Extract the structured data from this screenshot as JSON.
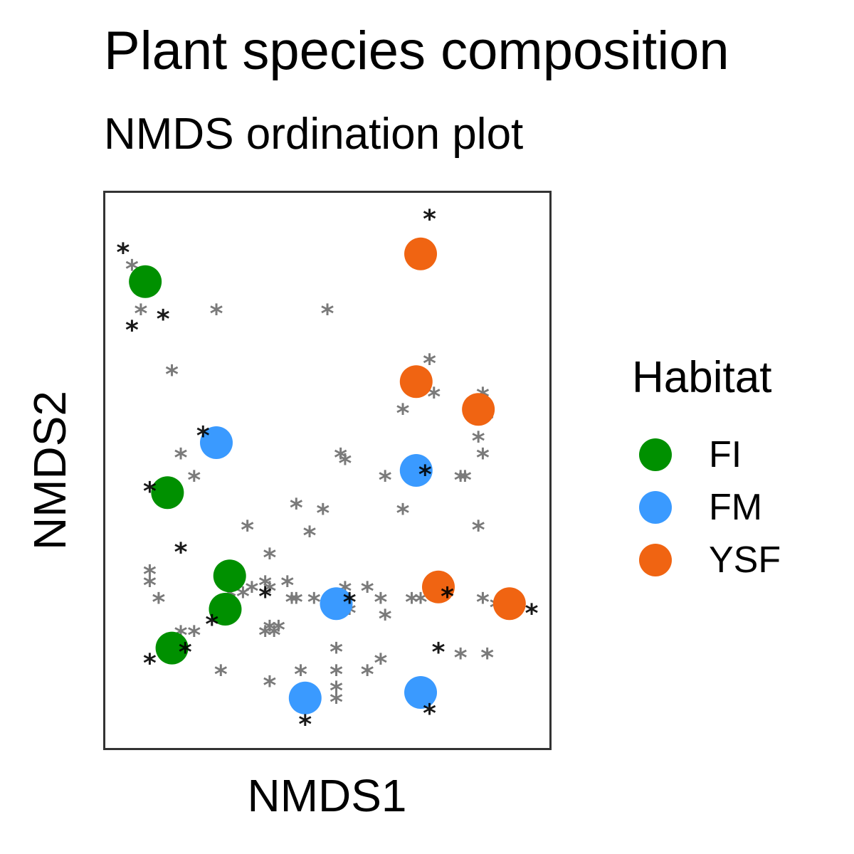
{
  "chart_data": {
    "type": "scatter",
    "title": "Plant species composition",
    "subtitle": "NMDS ordination plot",
    "xlabel": "NMDS1",
    "ylabel": "NMDS2",
    "xlim": [
      0,
      100
    ],
    "ylim": [
      0,
      100
    ],
    "axis_ticks": false,
    "grid": false,
    "legend": {
      "title": "Habitat",
      "placement": "right"
    },
    "series": [
      {
        "name": "FI",
        "color": "#009000",
        "points": [
          [
            9,
            84
          ],
          [
            14,
            46
          ],
          [
            28,
            31
          ],
          [
            27,
            25
          ],
          [
            15,
            18
          ]
        ]
      },
      {
        "name": "FM",
        "color": "#3A9AFF",
        "points": [
          [
            25,
            55
          ],
          [
            70,
            50
          ],
          [
            52,
            26
          ],
          [
            45,
            9
          ],
          [
            71,
            10
          ]
        ]
      },
      {
        "name": "YSF",
        "color": "#F06412",
        "points": [
          [
            71,
            89
          ],
          [
            70,
            66
          ],
          [
            84,
            61
          ],
          [
            75,
            29
          ],
          [
            91,
            26
          ]
        ]
      }
    ],
    "species_markers": {
      "glyph": "*",
      "significant_color": "#000000",
      "other_color": "#7a7a7a",
      "significant": [
        [
          4,
          90
        ],
        [
          13,
          78
        ],
        [
          6,
          76
        ],
        [
          73,
          96
        ],
        [
          22,
          57
        ],
        [
          72,
          50
        ],
        [
          10,
          47
        ],
        [
          17,
          36
        ],
        [
          36,
          28
        ],
        [
          55,
          27
        ],
        [
          77,
          28
        ],
        [
          24,
          23
        ],
        [
          18,
          18
        ],
        [
          10,
          16
        ],
        [
          96,
          25
        ],
        [
          45,
          5
        ],
        [
          73,
          7
        ],
        [
          75,
          18
        ]
      ],
      "other": [
        [
          6,
          87
        ],
        [
          8,
          79
        ],
        [
          25,
          79
        ],
        [
          50,
          79
        ],
        [
          15,
          68
        ],
        [
          73,
          70
        ],
        [
          74,
          64
        ],
        [
          67,
          61
        ],
        [
          85,
          64
        ],
        [
          86,
          60
        ],
        [
          84,
          56
        ],
        [
          85,
          53
        ],
        [
          17,
          53
        ],
        [
          20,
          49
        ],
        [
          53,
          53
        ],
        [
          54,
          52
        ],
        [
          63,
          49
        ],
        [
          80,
          49
        ],
        [
          81,
          49
        ],
        [
          43,
          44
        ],
        [
          49,
          43
        ],
        [
          67,
          43
        ],
        [
          32,
          40
        ],
        [
          46,
          39
        ],
        [
          84,
          40
        ],
        [
          37,
          35
        ],
        [
          10,
          32
        ],
        [
          10,
          30
        ],
        [
          12,
          27
        ],
        [
          28,
          31
        ],
        [
          30,
          31
        ],
        [
          28,
          28
        ],
        [
          31,
          28
        ],
        [
          33,
          29
        ],
        [
          36,
          30
        ],
        [
          37,
          29
        ],
        [
          41,
          30
        ],
        [
          42,
          27
        ],
        [
          43,
          27
        ],
        [
          47,
          27
        ],
        [
          51,
          27
        ],
        [
          54,
          29
        ],
        [
          59,
          29
        ],
        [
          62,
          27
        ],
        [
          63,
          24
        ],
        [
          55,
          25
        ],
        [
          69,
          27
        ],
        [
          71,
          27
        ],
        [
          85,
          27
        ],
        [
          88,
          26
        ],
        [
          17,
          21
        ],
        [
          20,
          21
        ],
        [
          37,
          22
        ],
        [
          36,
          21
        ],
        [
          38,
          21
        ],
        [
          39,
          22
        ],
        [
          52,
          18
        ],
        [
          52,
          14
        ],
        [
          59,
          14
        ],
        [
          62,
          16
        ],
        [
          26,
          14
        ],
        [
          37,
          12
        ],
        [
          44,
          14
        ],
        [
          52,
          11
        ],
        [
          46,
          9
        ],
        [
          52,
          9
        ],
        [
          80,
          17
        ],
        [
          86,
          17
        ]
      ]
    }
  }
}
